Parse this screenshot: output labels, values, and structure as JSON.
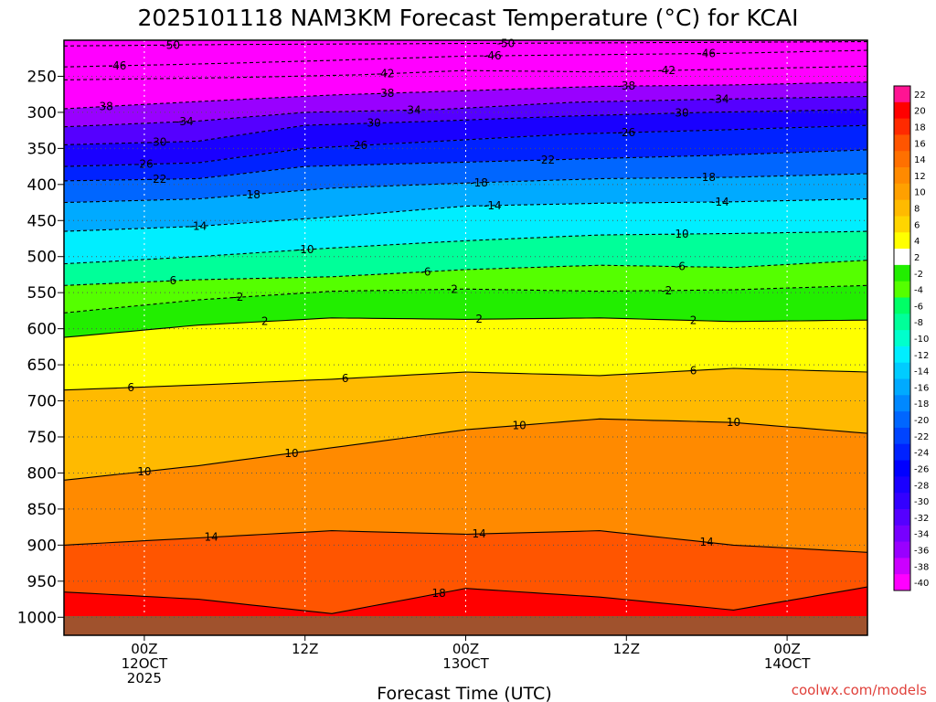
{
  "chart_data": {
    "type": "heatmap",
    "title": "2025101118 NAM3KM Forecast Temperature (°C) for KCAI",
    "xlabel": "Forecast Time (UTC)",
    "ylabel": "",
    "x_ticks": [
      {
        "hour": 6,
        "lines": [
          "00Z",
          "12OCT",
          "2025"
        ]
      },
      {
        "hour": 18,
        "lines": [
          "12Z"
        ]
      },
      {
        "hour": 30,
        "lines": [
          "00Z",
          "13OCT"
        ]
      },
      {
        "hour": 42,
        "lines": [
          "12Z"
        ]
      },
      {
        "hour": 54,
        "lines": [
          "00Z",
          "14OCT"
        ]
      }
    ],
    "xlim": [
      0,
      60
    ],
    "y_ticks": [
      250,
      300,
      350,
      400,
      450,
      500,
      550,
      600,
      650,
      700,
      750,
      800,
      850,
      900,
      950,
      1000
    ],
    "y_tick_labels": [
      "250",
      "300",
      "350",
      "400",
      "450",
      "500",
      "550",
      "600",
      "650",
      "700",
      "750",
      "800",
      "850",
      "900",
      "950",
      "1000"
    ],
    "ylim_hpa": [
      200,
      1025
    ],
    "watermark": "coolwx.com/models",
    "colorbar": {
      "labels": [
        22,
        20,
        18,
        16,
        14,
        12,
        10,
        8,
        6,
        4,
        2,
        -2,
        -4,
        -6,
        -8,
        -10,
        -12,
        -14,
        -16,
        -18,
        -20,
        -22,
        -24,
        -26,
        -28,
        -30,
        -32,
        -34,
        -36,
        -38,
        -40
      ],
      "colors": [
        "#ff1493",
        "#ff0000",
        "#ff2a00",
        "#ff5500",
        "#ff7000",
        "#ff8a00",
        "#ffa000",
        "#ffba00",
        "#ffd500",
        "#ffff00",
        "#ffffff",
        "#22ee00",
        "#55ff00",
        "#00ff66",
        "#00ff99",
        "#00ffcc",
        "#00eeff",
        "#00ccff",
        "#00aaff",
        "#0088ff",
        "#0066ff",
        "#0044ff",
        "#0022ff",
        "#0000ff",
        "#1a00ff",
        "#3300ff",
        "#5500ff",
        "#7700ff",
        "#9900ff",
        "#cc00ff",
        "#ff00ff"
      ]
    },
    "isotherms": [
      {
        "value": -50,
        "pressure_at_x": [
          [
            0,
            208
          ],
          [
            12,
            206
          ],
          [
            24,
            205
          ],
          [
            36,
            204
          ],
          [
            48,
            203
          ],
          [
            60,
            202
          ]
        ],
        "labels": [
          [
            8,
            "-50"
          ],
          [
            33,
            "-50"
          ]
        ]
      },
      {
        "value": -46,
        "pressure_at_x": [
          [
            0,
            237
          ],
          [
            10,
            233
          ],
          [
            20,
            228
          ],
          [
            30,
            222
          ],
          [
            40,
            220
          ],
          [
            50,
            218
          ],
          [
            60,
            214
          ]
        ],
        "labels": [
          [
            4,
            "-46"
          ],
          [
            32,
            "-46"
          ],
          [
            48,
            "-46"
          ]
        ]
      },
      {
        "value": -42,
        "pressure_at_x": [
          [
            0,
            255
          ],
          [
            12,
            252
          ],
          [
            22,
            248
          ],
          [
            30,
            242
          ],
          [
            40,
            244
          ],
          [
            50,
            240
          ],
          [
            60,
            236
          ]
        ],
        "labels": [
          [
            24,
            "-42"
          ],
          [
            45,
            "-42"
          ]
        ]
      },
      {
        "value": -38,
        "pressure_at_x": [
          [
            0,
            295
          ],
          [
            10,
            285
          ],
          [
            20,
            276
          ],
          [
            30,
            270
          ],
          [
            40,
            264
          ],
          [
            50,
            262
          ],
          [
            60,
            258
          ]
        ],
        "labels": [
          [
            3,
            "-38"
          ],
          [
            24,
            "-38"
          ],
          [
            42,
            "-38"
          ]
        ]
      },
      {
        "value": -34,
        "pressure_at_x": [
          [
            0,
            320
          ],
          [
            10,
            312
          ],
          [
            18,
            300
          ],
          [
            28,
            296
          ],
          [
            38,
            286
          ],
          [
            48,
            282
          ],
          [
            60,
            278
          ]
        ],
        "labels": [
          [
            9,
            "-34"
          ],
          [
            26,
            "-34"
          ],
          [
            49,
            "-34"
          ]
        ]
      },
      {
        "value": -30,
        "pressure_at_x": [
          [
            0,
            345
          ],
          [
            10,
            340
          ],
          [
            18,
            318
          ],
          [
            28,
            312
          ],
          [
            38,
            305
          ],
          [
            48,
            300
          ],
          [
            60,
            296
          ]
        ],
        "labels": [
          [
            7,
            "-30"
          ],
          [
            23,
            "-30"
          ],
          [
            46,
            "-30"
          ]
        ]
      },
      {
        "value": -26,
        "pressure_at_x": [
          [
            0,
            375
          ],
          [
            10,
            370
          ],
          [
            18,
            350
          ],
          [
            28,
            340
          ],
          [
            38,
            330
          ],
          [
            48,
            325
          ],
          [
            60,
            318
          ]
        ],
        "labels": [
          [
            6,
            "-26"
          ],
          [
            22,
            "-26"
          ],
          [
            42,
            "-26"
          ]
        ]
      },
      {
        "value": -22,
        "pressure_at_x": [
          [
            0,
            395
          ],
          [
            10,
            392
          ],
          [
            18,
            375
          ],
          [
            28,
            370
          ],
          [
            38,
            365
          ],
          [
            48,
            360
          ],
          [
            60,
            352
          ]
        ],
        "labels": [
          [
            7,
            "-22"
          ],
          [
            36,
            "-22"
          ]
        ]
      },
      {
        "value": -18,
        "pressure_at_x": [
          [
            0,
            425
          ],
          [
            10,
            420
          ],
          [
            20,
            405
          ],
          [
            30,
            398
          ],
          [
            40,
            392
          ],
          [
            50,
            390
          ],
          [
            60,
            385
          ]
        ],
        "labels": [
          [
            14,
            "-18"
          ],
          [
            31,
            "-18"
          ],
          [
            48,
            "-18"
          ]
        ]
      },
      {
        "value": -14,
        "pressure_at_x": [
          [
            0,
            465
          ],
          [
            10,
            458
          ],
          [
            20,
            445
          ],
          [
            30,
            430
          ],
          [
            40,
            426
          ],
          [
            50,
            424
          ],
          [
            60,
            420
          ]
        ],
        "labels": [
          [
            10,
            "-14"
          ],
          [
            32,
            "-14"
          ],
          [
            49,
            "-14"
          ]
        ]
      },
      {
        "value": -10,
        "pressure_at_x": [
          [
            0,
            510
          ],
          [
            10,
            500
          ],
          [
            20,
            488
          ],
          [
            30,
            478
          ],
          [
            40,
            470
          ],
          [
            50,
            468
          ],
          [
            60,
            465
          ]
        ],
        "labels": [
          [
            18,
            "-10"
          ],
          [
            46,
            "-10"
          ]
        ]
      },
      {
        "value": -6,
        "pressure_at_x": [
          [
            0,
            540
          ],
          [
            10,
            532
          ],
          [
            20,
            528
          ],
          [
            30,
            518
          ],
          [
            40,
            512
          ],
          [
            50,
            515
          ],
          [
            60,
            505
          ]
        ],
        "labels": [
          [
            8,
            "-6"
          ],
          [
            27,
            "-6"
          ],
          [
            46,
            "-6"
          ]
        ]
      },
      {
        "value": -2,
        "pressure_at_x": [
          [
            0,
            578
          ],
          [
            10,
            560
          ],
          [
            20,
            548
          ],
          [
            30,
            545
          ],
          [
            40,
            548
          ],
          [
            50,
            546
          ],
          [
            60,
            540
          ]
        ],
        "labels": [
          [
            13,
            "-2"
          ],
          [
            29,
            "-2"
          ],
          [
            45,
            "-2"
          ]
        ]
      },
      {
        "value": 2,
        "pressure_at_x": [
          [
            0,
            612
          ],
          [
            10,
            595
          ],
          [
            20,
            585
          ],
          [
            30,
            587
          ],
          [
            40,
            585
          ],
          [
            50,
            590
          ],
          [
            60,
            588
          ]
        ],
        "labels": [
          [
            15,
            "2"
          ],
          [
            31,
            "2"
          ],
          [
            47,
            "2"
          ]
        ]
      },
      {
        "value": 6,
        "pressure_at_x": [
          [
            0,
            685
          ],
          [
            10,
            678
          ],
          [
            20,
            670
          ],
          [
            30,
            660
          ],
          [
            40,
            665
          ],
          [
            50,
            655
          ],
          [
            60,
            660
          ]
        ],
        "labels": [
          [
            5,
            "6"
          ],
          [
            21,
            "6"
          ],
          [
            47,
            "6"
          ]
        ]
      },
      {
        "value": 10,
        "pressure_at_x": [
          [
            0,
            810
          ],
          [
            10,
            790
          ],
          [
            20,
            765
          ],
          [
            30,
            740
          ],
          [
            40,
            725
          ],
          [
            50,
            730
          ],
          [
            60,
            745
          ]
        ],
        "labels": [
          [
            6,
            "10"
          ],
          [
            17,
            "10"
          ],
          [
            34,
            "10"
          ],
          [
            50,
            "10"
          ]
        ]
      },
      {
        "value": 14,
        "pressure_at_x": [
          [
            0,
            900
          ],
          [
            10,
            890
          ],
          [
            20,
            880
          ],
          [
            30,
            885
          ],
          [
            40,
            880
          ],
          [
            50,
            900
          ],
          [
            60,
            910
          ]
        ],
        "labels": [
          [
            11,
            "14"
          ],
          [
            31,
            "14"
          ],
          [
            48,
            "14"
          ]
        ]
      },
      {
        "value": 18,
        "pressure_at_x": [
          [
            0,
            965
          ],
          [
            10,
            975
          ],
          [
            20,
            995
          ],
          [
            30,
            960
          ],
          [
            40,
            972
          ],
          [
            50,
            990
          ],
          [
            60,
            958
          ]
        ],
        "labels": [
          [
            28,
            "18"
          ]
        ]
      }
    ]
  }
}
